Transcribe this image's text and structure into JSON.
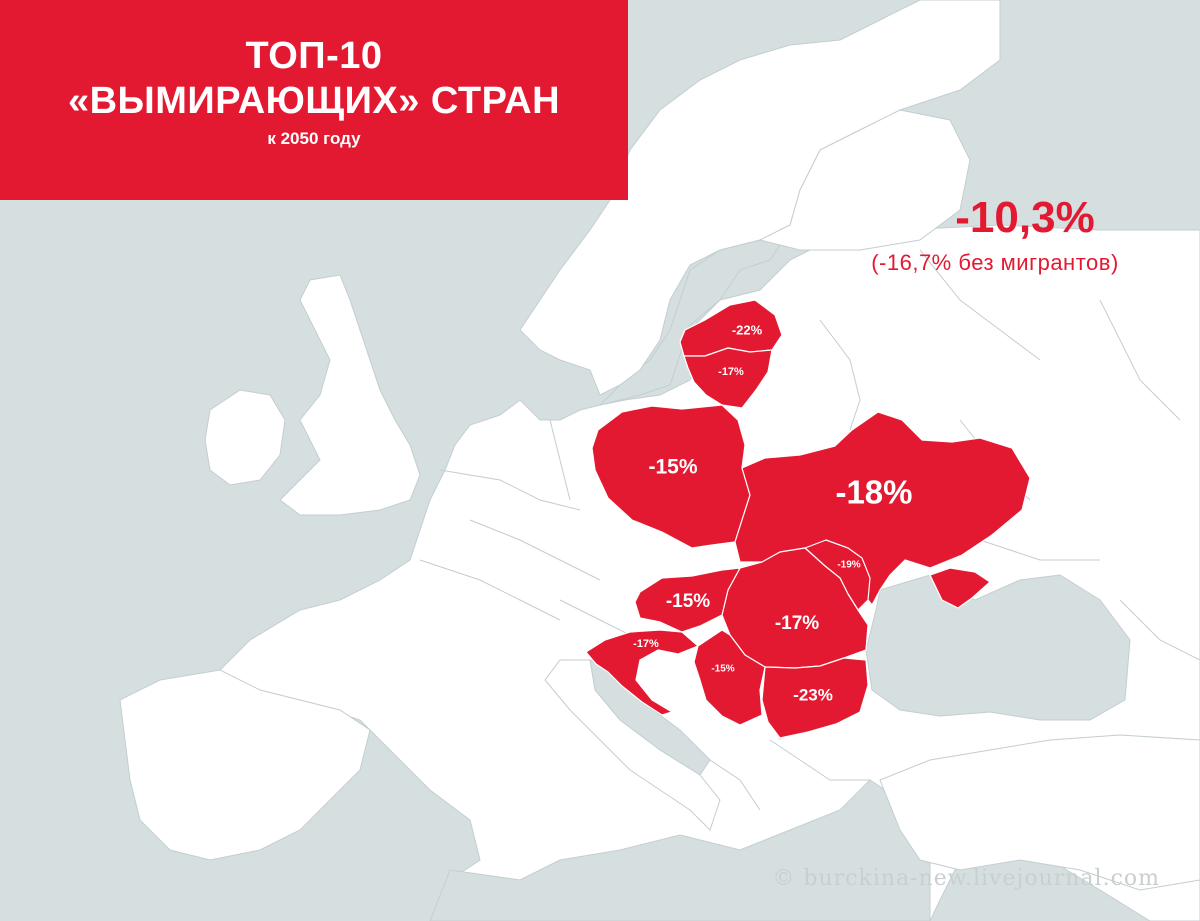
{
  "title": {
    "line1": "ТОП-10",
    "line2": "«ВЫМИРАЮЩИХ» СТРАН",
    "subtitle": "к 2050 году"
  },
  "total": {
    "value": "-10,3%",
    "note": "(-16,7% без мигрантов)"
  },
  "countries": {
    "latvia": "-22%",
    "lithuania": "-17%",
    "poland": "-15%",
    "ukraine": "-18%",
    "moldova": "-19%",
    "hungary": "-15%",
    "romania": "-17%",
    "croatia": "-17%",
    "serbia": "-15%",
    "bulgaria": "-23%"
  },
  "credit": "© burckina-new.livejournal.com",
  "colors": {
    "highlight": "#e31932",
    "sea": "#d6dfe0",
    "land": "#ffffff",
    "border": "#c4cdd0",
    "credit": "#c9cfd1"
  }
}
